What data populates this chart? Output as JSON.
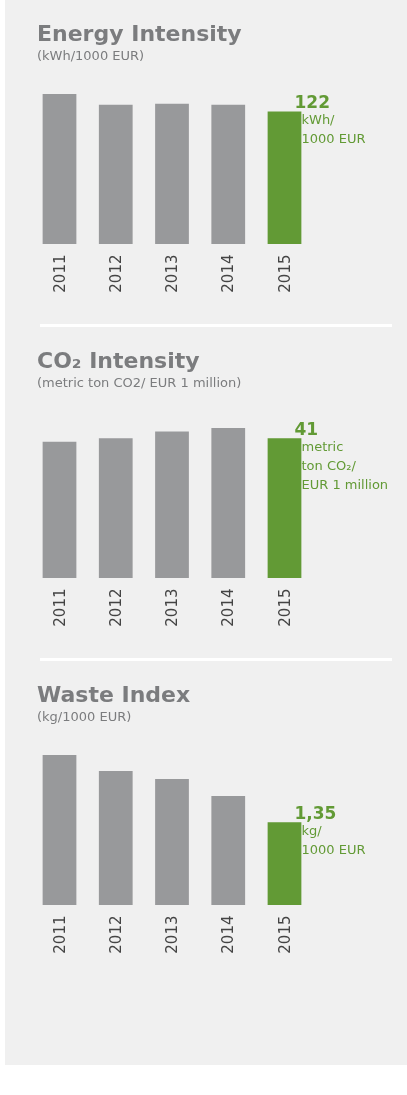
{
  "chart_data": [
    {
      "type": "bar",
      "title": "Energy Intensity",
      "subtitle": "(kWh/1000 EUR)",
      "categories": [
        "2011",
        "2012",
        "2013",
        "2014",
        "2015"
      ],
      "values": [
        138,
        128,
        129,
        128,
        122
      ],
      "colors": [
        "#98999b",
        "#98999b",
        "#98999b",
        "#98999b",
        "#629a35"
      ],
      "value_labels": [
        null,
        null,
        null,
        null,
        "122"
      ],
      "annotations": [
        "kWh/\n1000 EUR"
      ]
    },
    {
      "type": "bar",
      "title": "CO₂ Intensity",
      "subtitle": "(metric ton CO2/ EUR 1 million)",
      "categories": [
        "2011",
        "2012",
        "2013",
        "2014",
        "2015"
      ],
      "values": [
        40,
        41,
        43,
        44,
        41
      ],
      "colors": [
        "#98999b",
        "#98999b",
        "#98999b",
        "#98999b",
        "#629a35"
      ],
      "value_labels": [
        null,
        null,
        null,
        null,
        "41"
      ],
      "annotations": [
        "metric\nton CO₂/\nEUR 1 million"
      ]
    },
    {
      "type": "bar",
      "title": "Waste Index",
      "subtitle": "(kg/1000 EUR)",
      "categories": [
        "2011",
        "2012",
        "2013",
        "2014",
        "2015"
      ],
      "values": [
        2.45,
        2.19,
        2.06,
        1.78,
        1.35
      ],
      "colors": [
        "#98999b",
        "#98999b",
        "#98999b",
        "#98999b",
        "#629a35"
      ],
      "value_labels": [
        null,
        null,
        null,
        null,
        "1,35"
      ],
      "annotations": [
        "kg/\n1000 EUR"
      ]
    }
  ]
}
